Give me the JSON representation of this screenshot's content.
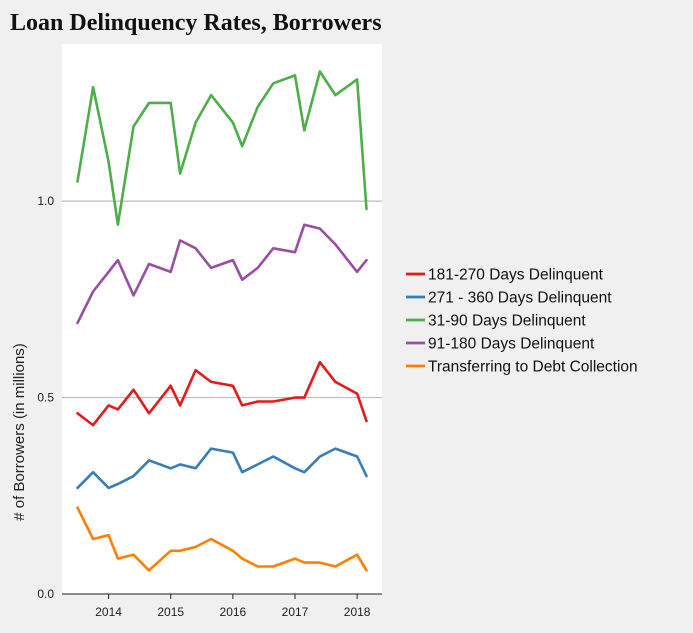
{
  "chart_data": {
    "type": "line",
    "title": "Loan Delinquency Rates, Borrowers",
    "xlabel": "",
    "ylabel": "# of Borrowers (in millions)",
    "ylim": [
      0,
      1.4
    ],
    "xlim": [
      2013.25,
      2018.4
    ],
    "y_ticks": [
      0.0,
      0.5,
      1.0
    ],
    "y_tick_labels": [
      "0.0",
      "0.5",
      "1.0"
    ],
    "x_ticks": [
      2014,
      2015,
      2016,
      2017,
      2018
    ],
    "x_tick_labels": [
      "2014",
      "2015",
      "2016",
      "2017",
      "2018"
    ],
    "grid": "horizontal at y ticks",
    "legend_position": "right",
    "x": [
      2013.5,
      2013.75,
      2014.0,
      2014.15,
      2014.4,
      2014.65,
      2015.0,
      2015.15,
      2015.4,
      2015.65,
      2016.0,
      2016.15,
      2016.4,
      2016.65,
      2017.0,
      2017.15,
      2017.4,
      2017.65,
      2018.0,
      2018.15
    ],
    "series": [
      {
        "name": "181-270 Days Delinquent",
        "color": "#e41a1c",
        "values": [
          0.46,
          0.43,
          0.48,
          0.47,
          0.52,
          0.46,
          0.53,
          0.48,
          0.57,
          0.54,
          0.53,
          0.48,
          0.49,
          0.49,
          0.5,
          0.5,
          0.59,
          0.54,
          0.51,
          0.44
        ]
      },
      {
        "name": "271 - 360 Days Delinquent",
        "color": "#377eb8",
        "values": [
          0.27,
          0.31,
          0.27,
          0.28,
          0.3,
          0.34,
          0.32,
          0.33,
          0.32,
          0.37,
          0.36,
          0.31,
          0.33,
          0.35,
          0.32,
          0.31,
          0.35,
          0.37,
          0.35,
          0.3
        ]
      },
      {
        "name": "31-90 Days Delinquent",
        "color": "#4daf4a",
        "values": [
          1.05,
          1.29,
          1.1,
          0.94,
          1.19,
          1.25,
          1.25,
          1.07,
          1.2,
          1.27,
          1.2,
          1.14,
          1.24,
          1.3,
          1.32,
          1.18,
          1.33,
          1.27,
          1.31,
          0.98
        ]
      },
      {
        "name": "91-180 Days Delinquent",
        "color": "#984ea3",
        "values": [
          0.69,
          0.77,
          0.82,
          0.85,
          0.76,
          0.84,
          0.82,
          0.9,
          0.88,
          0.83,
          0.85,
          0.8,
          0.83,
          0.88,
          0.87,
          0.94,
          0.93,
          0.89,
          0.82,
          0.85
        ]
      },
      {
        "name": "Transferring to Debt Collection",
        "color": "#ff7f00",
        "values": [
          0.22,
          0.14,
          0.15,
          0.09,
          0.1,
          0.06,
          0.11,
          0.11,
          0.12,
          0.14,
          0.11,
          0.09,
          0.07,
          0.07,
          0.09,
          0.08,
          0.08,
          0.07,
          0.1,
          0.06
        ]
      }
    ]
  }
}
